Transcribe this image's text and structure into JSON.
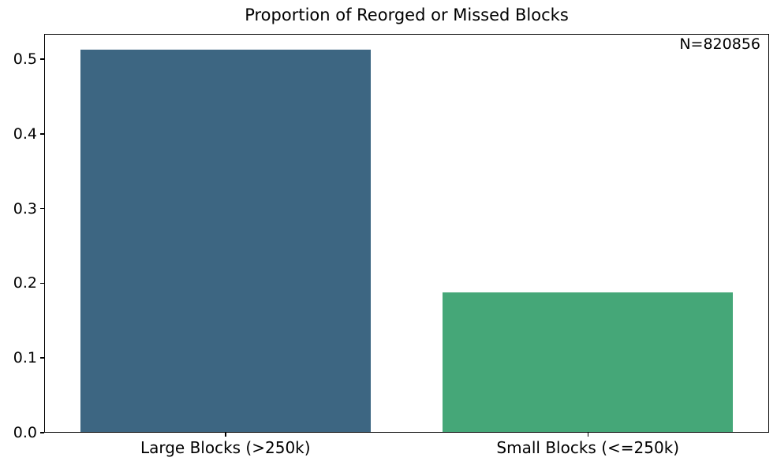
{
  "chart_data": {
    "type": "bar",
    "title": "Proportion of Reorged or Missed Blocks",
    "annotation": "N=820856",
    "categories": [
      "Large Blocks (>250k)",
      "Small Blocks (<=250k)"
    ],
    "values": [
      0.513,
      0.188
    ],
    "bar_colors": [
      "#3d6682",
      "#45a778"
    ],
    "xlabel": "",
    "ylabel": "",
    "ylim": [
      0,
      0.534
    ],
    "yticks": [
      0.0,
      0.1,
      0.2,
      0.3,
      0.4,
      0.5
    ],
    "ytick_labels": [
      "0.0",
      "0.1",
      "0.2",
      "0.3",
      "0.4",
      "0.5"
    ],
    "bar_width_fraction": 0.8,
    "grid": false,
    "legend": null,
    "spine_color": "#000000",
    "background_color": "#ffffff",
    "text_color": "#000000"
  }
}
